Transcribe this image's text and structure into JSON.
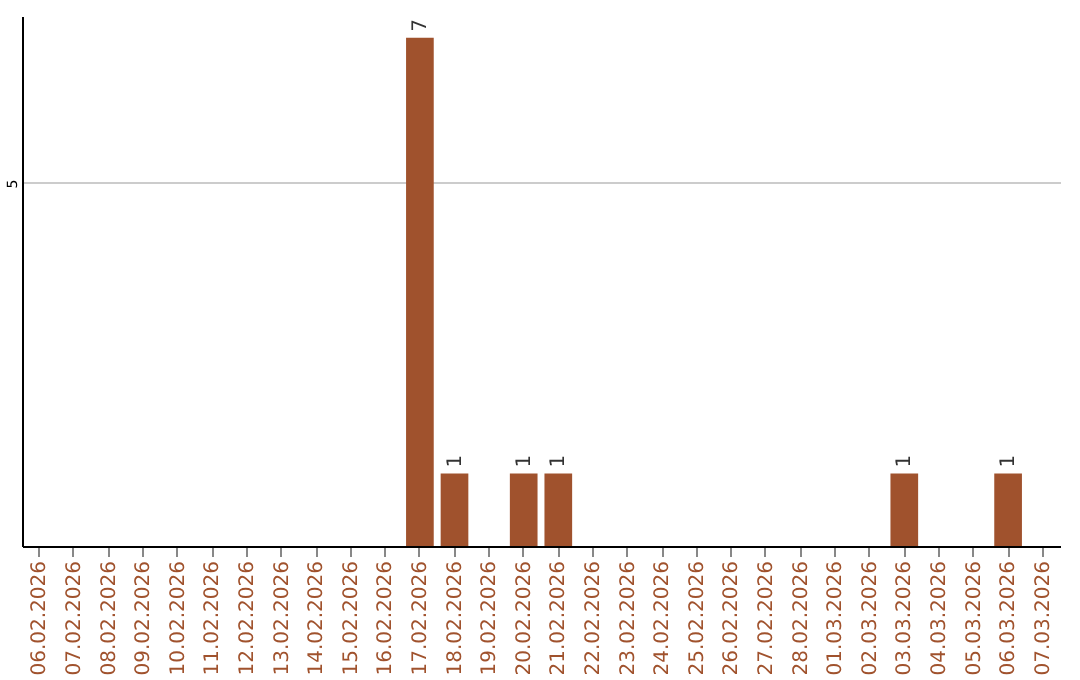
{
  "chart_data": {
    "type": "bar",
    "categories": [
      "06.02.2026",
      "07.02.2026",
      "08.02.2026",
      "09.02.2026",
      "10.02.2026",
      "11.02.2026",
      "12.02.2026",
      "13.02.2026",
      "14.02.2026",
      "15.02.2026",
      "16.02.2026",
      "17.02.2026",
      "18.02.2026",
      "19.02.2026",
      "20.02.2026",
      "21.02.2026",
      "22.02.2026",
      "23.02.2026",
      "24.02.2026",
      "25.02.2026",
      "26.02.2026",
      "27.02.2026",
      "28.02.2026",
      "01.03.2026",
      "02.03.2026",
      "03.03.2026",
      "04.03.2026",
      "05.03.2026",
      "06.03.2026",
      "07.03.2026"
    ],
    "values": [
      null,
      null,
      null,
      null,
      null,
      null,
      null,
      null,
      null,
      null,
      null,
      7,
      1,
      null,
      1,
      1,
      null,
      null,
      null,
      null,
      null,
      null,
      null,
      null,
      null,
      1,
      null,
      null,
      1,
      null
    ],
    "color": "#a0522d",
    "ylim": [
      0,
      7.3
    ],
    "yticks": [
      5
    ],
    "grid": "y",
    "data_labels": true
  }
}
